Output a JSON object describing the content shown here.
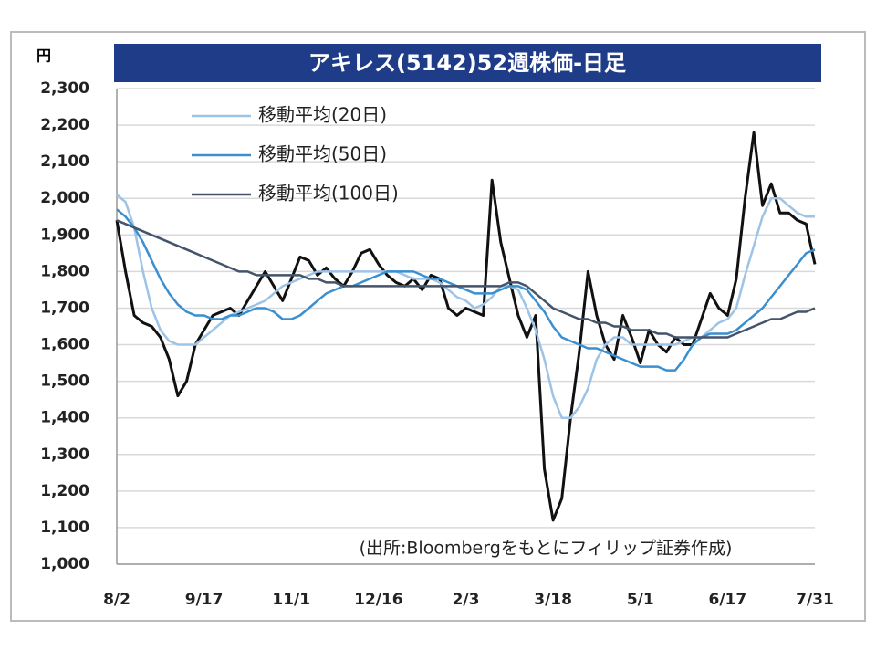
{
  "chart_data": {
    "type": "line",
    "title": "アキレス(5142)52週株価-日足",
    "y_unit": "円",
    "annotation": "(出所:Bloombergをもとにフィリップ証券作成)",
    "categories": [
      "8/2",
      null,
      null,
      null,
      null,
      null,
      null,
      null,
      null,
      null,
      "9/17",
      null,
      null,
      null,
      null,
      null,
      null,
      null,
      null,
      null,
      "11/1",
      null,
      null,
      null,
      null,
      null,
      null,
      null,
      null,
      null,
      "12/16",
      null,
      null,
      null,
      null,
      null,
      null,
      null,
      null,
      null,
      "2/3",
      null,
      null,
      null,
      null,
      null,
      null,
      null,
      null,
      null,
      "3/18",
      null,
      null,
      null,
      null,
      null,
      null,
      null,
      null,
      null,
      "5/1",
      null,
      null,
      null,
      null,
      null,
      null,
      null,
      null,
      null,
      "6/17",
      null,
      null,
      null,
      null,
      null,
      null,
      null,
      null,
      null,
      "7/31"
    ],
    "price_color": "#111111",
    "price_values": [
      1940,
      1800,
      1680,
      1660,
      1650,
      1620,
      1560,
      1460,
      1500,
      1600,
      1640,
      1680,
      1690,
      1700,
      1680,
      1720,
      1760,
      1800,
      1760,
      1720,
      1780,
      1840,
      1830,
      1790,
      1810,
      1780,
      1760,
      1800,
      1850,
      1860,
      1820,
      1790,
      1770,
      1760,
      1780,
      1750,
      1790,
      1780,
      1700,
      1680,
      1700,
      1690,
      1680,
      2050,
      1880,
      1780,
      1680,
      1620,
      1680,
      1260,
      1120,
      1180,
      1400,
      1580,
      1800,
      1680,
      1600,
      1560,
      1680,
      1620,
      1550,
      1640,
      1600,
      1580,
      1620,
      1600,
      1600,
      1670,
      1740,
      1700,
      1680,
      1780,
      2000,
      2180,
      1980,
      2040,
      1960,
      1960,
      1940,
      1930,
      1820
    ],
    "series": [
      {
        "name": "移動平均(20日)",
        "color": "#9dc3e6",
        "values": [
          2010,
          1990,
          1920,
          1800,
          1700,
          1640,
          1610,
          1600,
          1600,
          1600,
          1620,
          1640,
          1660,
          1680,
          1690,
          1700,
          1710,
          1720,
          1740,
          1760,
          1770,
          1780,
          1790,
          1800,
          1800,
          1800,
          1800,
          1800,
          1800,
          1800,
          1800,
          1800,
          1800,
          1790,
          1780,
          1780,
          1780,
          1770,
          1750,
          1730,
          1720,
          1700,
          1710,
          1730,
          1760,
          1760,
          1750,
          1700,
          1640,
          1560,
          1460,
          1400,
          1400,
          1430,
          1480,
          1560,
          1600,
          1620,
          1620,
          1600,
          1600,
          1600,
          1600,
          1600,
          1600,
          1610,
          1620,
          1620,
          1640,
          1660,
          1670,
          1700,
          1790,
          1870,
          1950,
          2000,
          2000,
          1980,
          1960,
          1950,
          1950
        ]
      },
      {
        "name": "移動平均(50日)",
        "color": "#3a8fd0",
        "values": [
          1970,
          1950,
          1920,
          1880,
          1830,
          1780,
          1740,
          1710,
          1690,
          1680,
          1680,
          1670,
          1670,
          1680,
          1680,
          1690,
          1700,
          1700,
          1690,
          1670,
          1670,
          1680,
          1700,
          1720,
          1740,
          1750,
          1760,
          1760,
          1770,
          1780,
          1790,
          1800,
          1800,
          1800,
          1800,
          1790,
          1780,
          1780,
          1770,
          1760,
          1750,
          1740,
          1740,
          1740,
          1750,
          1760,
          1760,
          1750,
          1720,
          1690,
          1650,
          1620,
          1610,
          1600,
          1590,
          1590,
          1580,
          1570,
          1560,
          1550,
          1540,
          1540,
          1540,
          1530,
          1530,
          1560,
          1600,
          1620,
          1630,
          1630,
          1630,
          1640,
          1660,
          1680,
          1700,
          1730,
          1760,
          1790,
          1820,
          1850,
          1860
        ]
      },
      {
        "name": "移動平均(100日)",
        "color": "#44546a",
        "values": [
          1940,
          1930,
          1920,
          1910,
          1900,
          1890,
          1880,
          1870,
          1860,
          1850,
          1840,
          1830,
          1820,
          1810,
          1800,
          1800,
          1790,
          1790,
          1790,
          1790,
          1790,
          1790,
          1780,
          1780,
          1770,
          1770,
          1760,
          1760,
          1760,
          1760,
          1760,
          1760,
          1760,
          1760,
          1760,
          1760,
          1760,
          1760,
          1760,
          1760,
          1760,
          1760,
          1760,
          1760,
          1760,
          1770,
          1770,
          1760,
          1740,
          1720,
          1700,
          1690,
          1680,
          1670,
          1670,
          1660,
          1660,
          1650,
          1650,
          1640,
          1640,
          1640,
          1630,
          1630,
          1620,
          1620,
          1620,
          1620,
          1620,
          1620,
          1620,
          1630,
          1640,
          1650,
          1660,
          1670,
          1670,
          1680,
          1690,
          1690,
          1700
        ]
      }
    ],
    "ylim": [
      1000,
      2300
    ],
    "yticks": [
      {
        "value": 1000,
        "label": "1,000"
      },
      {
        "value": 1100,
        "label": "1,100"
      },
      {
        "value": 1200,
        "label": "1,200"
      },
      {
        "value": 1300,
        "label": "1,300"
      },
      {
        "value": 1400,
        "label": "1,400"
      },
      {
        "value": 1500,
        "label": "1,500"
      },
      {
        "value": 1600,
        "label": "1,600"
      },
      {
        "value": 1700,
        "label": "1,700"
      },
      {
        "value": 1800,
        "label": "1,800"
      },
      {
        "value": 1900,
        "label": "1,900"
      },
      {
        "value": 2000,
        "label": "2,000"
      },
      {
        "value": 2100,
        "label": "2,100"
      },
      {
        "value": 2200,
        "label": "2,200"
      },
      {
        "value": 2300,
        "label": "2,300"
      }
    ],
    "grid": true,
    "title_bg": "#1f3c88"
  }
}
